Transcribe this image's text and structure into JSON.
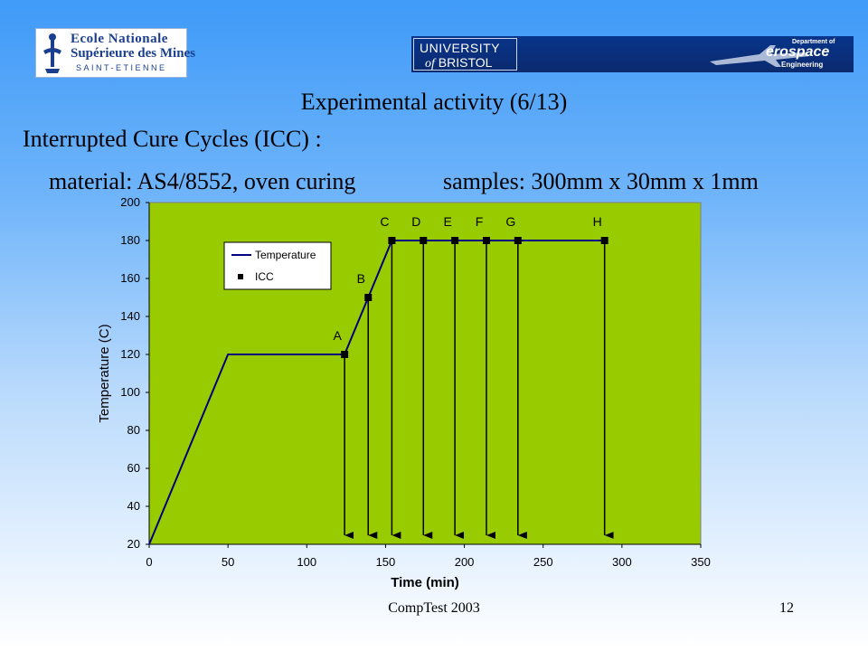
{
  "logos": {
    "emse": {
      "line1": "Ecole Nationale",
      "line2": "Supérieure des Mines",
      "line3": "SAINT-ETIENNE"
    },
    "bristol": {
      "line1": "UNIVERSITY",
      "line2_prefix": "of",
      "line2_rest": "BRISTOL"
    },
    "aerospace": {
      "dept": "Department of",
      "word": "erospace",
      "eng": "Engineering"
    }
  },
  "slide": {
    "title": "Experimental activity (6/13)",
    "subtitle": "Interrupted Cure Cycles (ICC) :",
    "material": "material: AS4/8552, oven curing",
    "samples": "samples: 300mm x 30mm x 1mm"
  },
  "footer": {
    "conference": "CompTest 2003",
    "page": "12"
  },
  "colors": {
    "plot_bg": "#99cc00",
    "line": "#000080",
    "marker": "#000000"
  },
  "chart_data": {
    "type": "line",
    "xlabel": "Time (min)",
    "ylabel": "Temperature (C)",
    "xlim": [
      0,
      350
    ],
    "ylim": [
      20,
      200
    ],
    "xticks": [
      0,
      50,
      100,
      150,
      200,
      250,
      300,
      350
    ],
    "yticks": [
      20,
      40,
      60,
      80,
      100,
      120,
      140,
      160,
      180,
      200
    ],
    "legend_position": "upper-left",
    "grid": false,
    "series": [
      {
        "name": "Temperature",
        "style": "line",
        "x": [
          0,
          50,
          124,
          154,
          289
        ],
        "y": [
          20,
          120,
          120,
          180,
          180
        ]
      },
      {
        "name": "ICC",
        "style": "markers",
        "points": [
          {
            "label": "A",
            "x": 124,
            "y": 120
          },
          {
            "label": "B",
            "x": 139,
            "y": 150
          },
          {
            "label": "C",
            "x": 154,
            "y": 180
          },
          {
            "label": "D",
            "x": 174,
            "y": 180
          },
          {
            "label": "E",
            "x": 194,
            "y": 180
          },
          {
            "label": "F",
            "x": 214,
            "y": 180
          },
          {
            "label": "G",
            "x": 234,
            "y": 180
          },
          {
            "label": "H",
            "x": 289,
            "y": 180
          }
        ]
      }
    ]
  }
}
